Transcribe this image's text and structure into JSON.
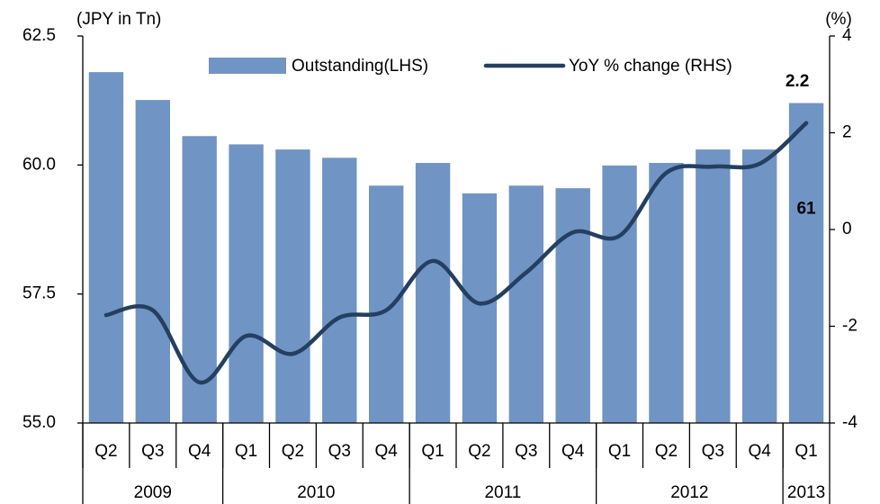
{
  "chart_data": {
    "type": "bar_line",
    "y_axis_label": "(JPY in Tn)",
    "y2_axis_label": "(%)",
    "categories": [
      "Q2",
      "Q3",
      "Q4",
      "Q1",
      "Q2",
      "Q3",
      "Q4",
      "Q1",
      "Q2",
      "Q3",
      "Q4",
      "Q1",
      "Q2",
      "Q3",
      "Q4",
      "Q1"
    ],
    "groups": [
      {
        "label": "2009",
        "count": 3
      },
      {
        "label": "2010",
        "count": 4
      },
      {
        "label": "2011",
        "count": 4
      },
      {
        "label": "2012",
        "count": 4
      },
      {
        "label": "2013",
        "count": 1
      }
    ],
    "series": [
      {
        "name": "Outstanding(LHS)",
        "type": "bar",
        "color": "#7094c4",
        "values": [
          61.8,
          61.26,
          60.56,
          60.4,
          60.3,
          60.14,
          59.6,
          60.04,
          59.45,
          59.6,
          59.55,
          59.99,
          60.04,
          60.3,
          60.3,
          61.2
        ],
        "value_labels": [
          null,
          null,
          null,
          null,
          null,
          null,
          null,
          null,
          null,
          null,
          null,
          null,
          null,
          null,
          null,
          "61"
        ]
      },
      {
        "name": "YoY % change (RHS)",
        "type": "line",
        "axis": "y2",
        "color": "#243f60",
        "values": [
          -1.77,
          -1.67,
          -3.16,
          -2.2,
          -2.57,
          -1.82,
          -1.67,
          -0.65,
          -1.53,
          -0.89,
          -0.06,
          -0.13,
          1.17,
          1.3,
          1.36,
          2.2
        ],
        "value_labels": [
          null,
          null,
          null,
          null,
          null,
          null,
          null,
          null,
          null,
          null,
          null,
          null,
          null,
          null,
          null,
          "2.2"
        ]
      }
    ],
    "ylim": [
      55,
      62.5
    ],
    "yticks": [
      {
        "value": 55,
        "label": "55.0"
      },
      {
        "value": 57.5,
        "label": "57.5"
      },
      {
        "value": 60,
        "label": "60.0"
      },
      {
        "value": 62.5,
        "label": "62.5"
      }
    ],
    "y2lim": [
      -4,
      4
    ],
    "y2ticks": [
      -4,
      -2,
      0,
      2,
      4
    ],
    "grid": false,
    "legend": "top"
  }
}
